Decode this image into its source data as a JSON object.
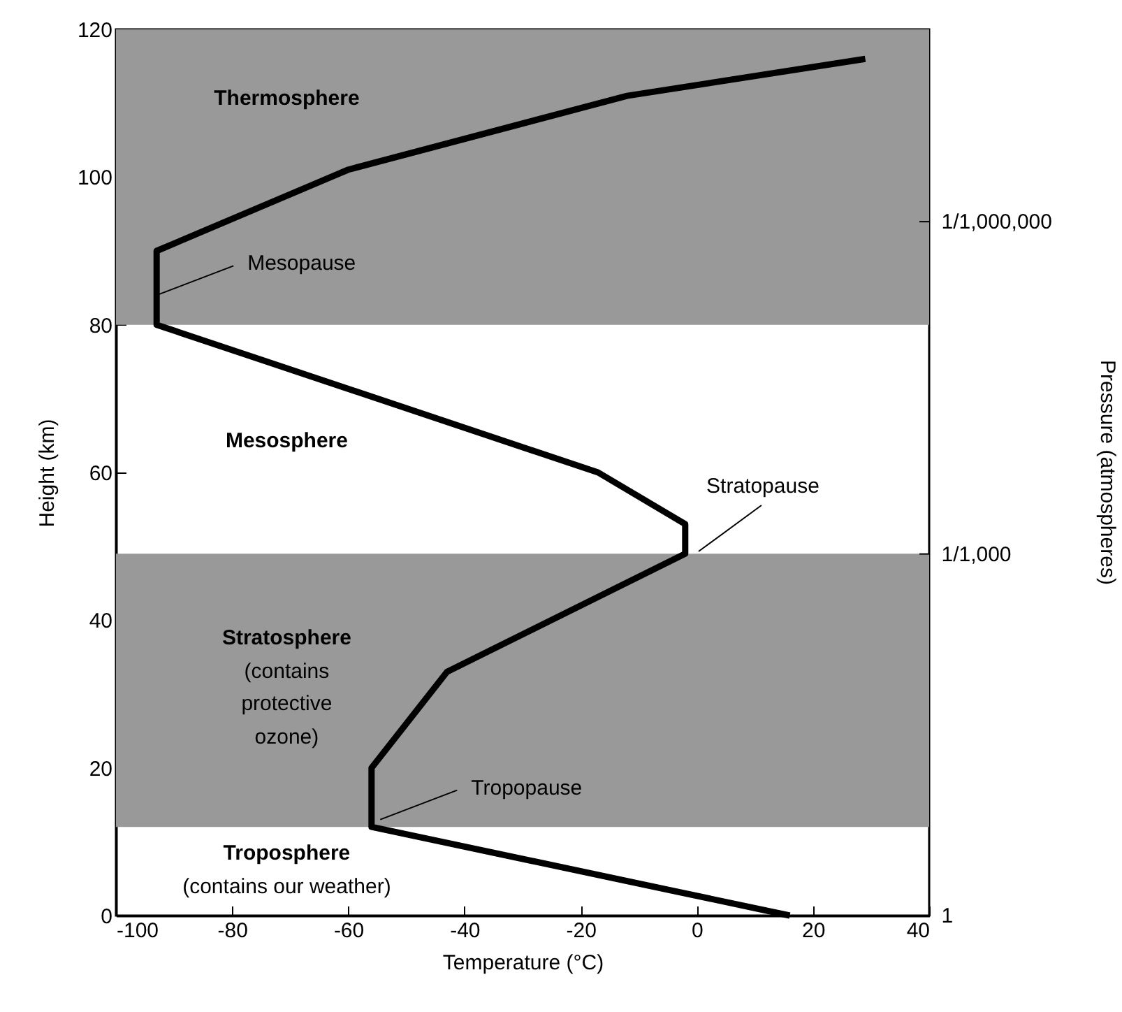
{
  "chart_data": {
    "type": "line",
    "xlabel": "Temperature (°C)",
    "ylabel": "Height (km)",
    "x": [
      16,
      -56,
      -56,
      -43,
      -2,
      -2,
      -17,
      -93,
      -93,
      -60,
      -12,
      29
    ],
    "series": [
      {
        "color": "#000000",
        "values": [
          0,
          12,
          20,
          33,
          49,
          53,
          60,
          80,
          90,
          101,
          111,
          116
        ]
      }
    ],
    "xlim": [
      -100,
      40
    ],
    "xticks": [
      -100,
      -80,
      -60,
      -40,
      -20,
      0,
      20,
      40
    ],
    "ylim": [
      0,
      120
    ],
    "yticks": [
      0,
      20,
      40,
      60,
      80,
      100,
      120
    ],
    "bands": [
      {
        "axis": "y",
        "from": 12,
        "to": 49,
        "color": "#999999"
      },
      {
        "axis": "y",
        "from": 80,
        "to": 120,
        "color": "#999999"
      }
    ],
    "annotations": [
      "Thermosphere",
      {
        "text": "Mesopause",
        "x": -93,
        "y": 84
      },
      "Mesosphere",
      {
        "text": "Stratopause",
        "x": 0.3,
        "y": 49.3
      },
      "Stratosphere",
      "(contains",
      "protective",
      "ozone)",
      {
        "text": "Tropopause",
        "x": -54.5,
        "y": 13
      },
      "Troposphere",
      "(contains our weather)",
      "1/1,000,000",
      "1/1,000",
      "1",
      "Pressure (atmospheres)"
    ],
    "line_style": "solid"
  }
}
